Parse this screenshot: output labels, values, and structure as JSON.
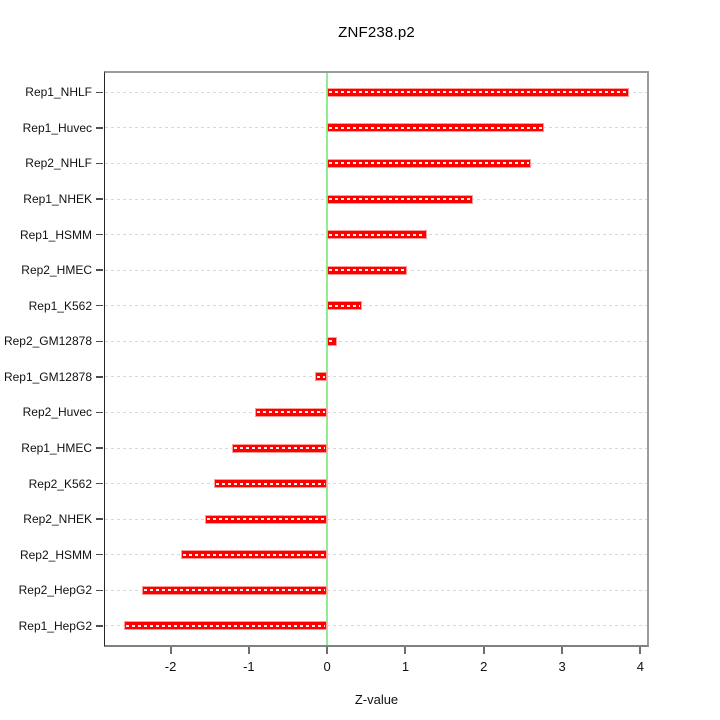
{
  "chart_data": {
    "type": "bar",
    "orientation": "horizontal",
    "title": "ZNF238.p2",
    "xlabel": "Z-value",
    "ylabel": "",
    "xlim": [
      -2.85,
      4.11
    ],
    "xticks": [
      -2,
      -1,
      0,
      1,
      2,
      3,
      4
    ],
    "xtick_labels": [
      "-2",
      "-1",
      "0",
      "1",
      "2",
      "3",
      "4"
    ],
    "grid": true,
    "zero_reference_line": 0,
    "categories": [
      "Rep1_NHLF",
      "Rep1_Huvec",
      "Rep2_NHLF",
      "Rep1_NHEK",
      "Rep1_HSMM",
      "Rep2_HMEC",
      "Rep1_K562",
      "Rep2_GM12878",
      "Rep1_GM12878",
      "Rep2_Huvec",
      "Rep1_HMEC",
      "Rep2_K562",
      "Rep2_NHEK",
      "Rep2_HSMM",
      "Rep2_HepG2",
      "Rep1_HepG2"
    ],
    "values": [
      3.85,
      2.77,
      2.6,
      1.86,
      1.28,
      1.02,
      0.44,
      0.13,
      -0.15,
      -0.92,
      -1.21,
      -1.44,
      -1.56,
      -1.87,
      -2.36,
      -2.6
    ],
    "colors": {
      "bar_fill": "#ff0000",
      "bar_border": "#ff9a9a",
      "bar_center_dash": "#ffffff",
      "zero_line": "#90ee90",
      "gridline": "#d8d8d8",
      "box_border": "#9c9c9c",
      "axis_line": "#808080",
      "tick": "#6e6e6e",
      "text": "#111111"
    }
  }
}
